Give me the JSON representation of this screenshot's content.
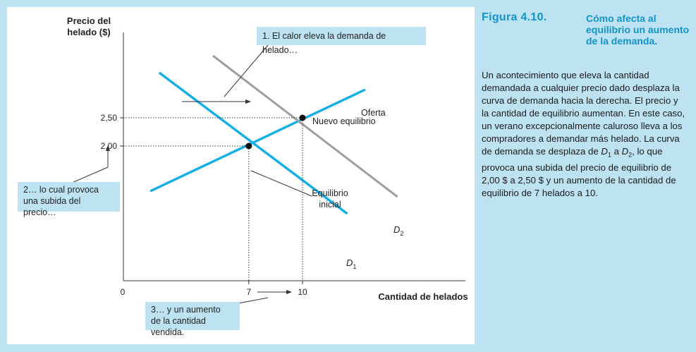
{
  "figure": {
    "number": "Figura 4.10.",
    "title": "Cómo afecta al equilibrio un aumento de la demanda.",
    "text_parts": [
      {
        "t": "Un acontecimiento que eleva la cantidad demandada a cualquier precio dado desplaza la curva de demanda hacia la derecha. El precio y la cantidad de equilibrio aumentan. En este caso, un verano excepcionalmente caluroso lleva a los compradores a demandar más helado. La curva de demanda se desplaza de "
      },
      {
        "t": "D",
        "style": "italic"
      },
      {
        "t": "1",
        "style": "sub"
      },
      {
        "t": " a "
      },
      {
        "t": "D",
        "style": "italic"
      },
      {
        "t": "2",
        "style": "sub"
      },
      {
        "t": ", lo que provoca una subida del precio de equilibrio de 2,00 $ a 2,50 $ y un aumento de la cantidad de equilibrio de 7 helados a 10."
      }
    ]
  },
  "colors": {
    "frame_bg": "#bde3f3",
    "demand_line": "#12aee6",
    "supply_line": "#12aee6",
    "demand2_line": "#9e9e9e",
    "caption_title": "#1394c9",
    "axis": "#333333"
  },
  "chart_data": {
    "type": "line",
    "ylabel": "Precio del\nhelado ($)",
    "xlabel": "Cantidad de helados",
    "origin_label": "0",
    "y_ticks": [
      {
        "value": 2.0,
        "label": "2,00"
      },
      {
        "value": 2.5,
        "label": "2,50"
      }
    ],
    "x_ticks": [
      {
        "value": 7,
        "label": "7"
      },
      {
        "value": 10,
        "label": "10"
      }
    ],
    "series": [
      {
        "name": "Oferta",
        "role": "supply",
        "points": [
          [
            1.5,
            1.2
          ],
          [
            13.5,
            3.0
          ]
        ]
      },
      {
        "name": "D1",
        "role": "demand_initial",
        "points": [
          [
            2.0,
            3.3
          ],
          [
            12.5,
            0.8
          ]
        ]
      },
      {
        "name": "D2",
        "role": "demand_new",
        "points": [
          [
            5.0,
            3.6
          ],
          [
            15.3,
            1.1
          ]
        ]
      }
    ],
    "equilibria": [
      {
        "label": "Equilibrio\ninicial",
        "x": 7,
        "y": 2.0
      },
      {
        "label": "Nuevo equilibrio",
        "x": 10,
        "y": 2.5
      }
    ],
    "curve_labels": {
      "supply": "Oferta",
      "d1_main": "D",
      "d1_sub": "1",
      "d2_main": "D",
      "d2_sub": "2"
    },
    "callouts": {
      "c1": "1. El calor eleva la demanda de helado…",
      "c2": "2… lo cual provoca\nuna subida del precio…",
      "c3": "3… y un aumento\nde la cantidad vendida."
    }
  }
}
